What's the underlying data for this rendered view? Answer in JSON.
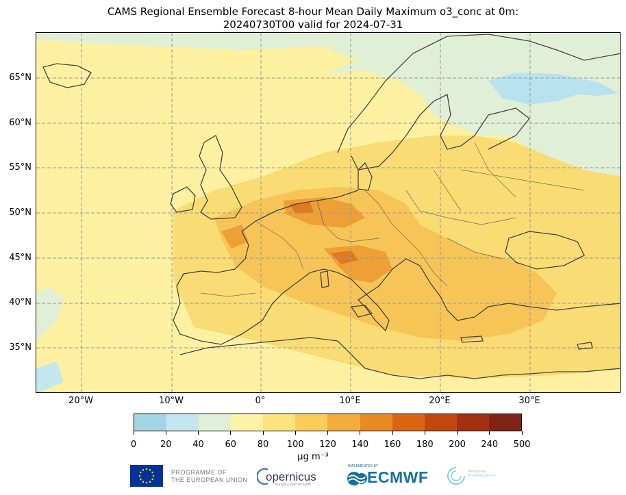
{
  "title_line1": "CAMS Regional Ensemble Forecast 8-hour Mean Daily Maximum o3_conc at 0m:",
  "title_line2": "20240730T00 valid for 2024-07-31",
  "lat_labels": [
    "65°N",
    "60°N",
    "55°N",
    "50°N",
    "45°N",
    "40°N",
    "35°N"
  ],
  "lon_labels": [
    "20°W",
    "10°W",
    "0°",
    "10°E",
    "20°E",
    "30°E"
  ],
  "colorbar": {
    "units": "µg m⁻³",
    "ticks": [
      "0",
      "20",
      "40",
      "60",
      "80",
      "100",
      "120",
      "140",
      "160",
      "180",
      "200",
      "240",
      "500"
    ],
    "colors": [
      "#a3d5e3",
      "#c3e6ef",
      "#e0efd6",
      "#fdf2a6",
      "#fce37a",
      "#f9cd5a",
      "#f4ad3c",
      "#e98a22",
      "#da6512",
      "#c0480c",
      "#a3300f",
      "#7f2415"
    ]
  },
  "logos": {
    "eu_line1": "PROGRAMME OF",
    "eu_line2": "THE EUROPEAN UNION",
    "copernicus": "opernicus",
    "copernicus_sub": "Europe's eyes on Earth",
    "ecmwf_sup": "IMPLEMENTED BY",
    "ecmwf": "ECMWF",
    "ams_line1": "Atmosphere",
    "ams_line2": "Monitoring Service"
  }
}
